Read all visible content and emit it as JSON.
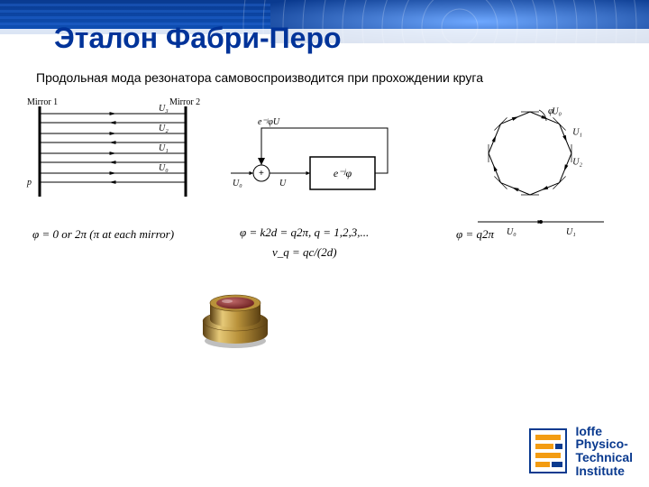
{
  "theme": {
    "title_color": "#003399",
    "banner_grad_top": "#0a3a8f",
    "banner_grad_bottom": "#0f52ba",
    "banner_stripe": "#2a6fe0",
    "logo_orange": "#f39c12",
    "logo_blue": "#0a3a8f",
    "diagram_stroke": "#000000",
    "optic_gold_light": "#e6c978",
    "optic_gold_mid": "#b8913a",
    "optic_gold_dark": "#5a3f12",
    "optic_window": "#6b1e1e"
  },
  "title": "Эталон Фабри-Перо",
  "subtitle": "Продольная мода резонатора самовоспроизводится при прохождении круга",
  "fig_mirror": {
    "left_label": "Mirror 1",
    "right_label": "Mirror 2",
    "p_label": "p",
    "rows": [
      "U₃",
      "U₂",
      "U₁",
      "U₀"
    ],
    "formula": "φ = 0 or 2π (π at each mirror)"
  },
  "fig_block": {
    "sum_top_label": "e⁻ʲφU",
    "sum_out_label": "U",
    "input_label": "U₀",
    "block_label": "e⁻ʲφ",
    "formula1": "φ = k2d = q2π, q = 1,2,3,...",
    "formula2": "ν_q = qc/(2d)"
  },
  "fig_ring": {
    "phi": "φ",
    "labels": [
      "U₀",
      "U₁",
      "U₂"
    ],
    "sides": 8,
    "line_labels": [
      "U₀",
      "U₁"
    ],
    "formula": "φ = q2π"
  },
  "logo": {
    "line1": "Ioffe",
    "line2": "Physico-",
    "line3": "Technical",
    "line4": "Institute"
  }
}
